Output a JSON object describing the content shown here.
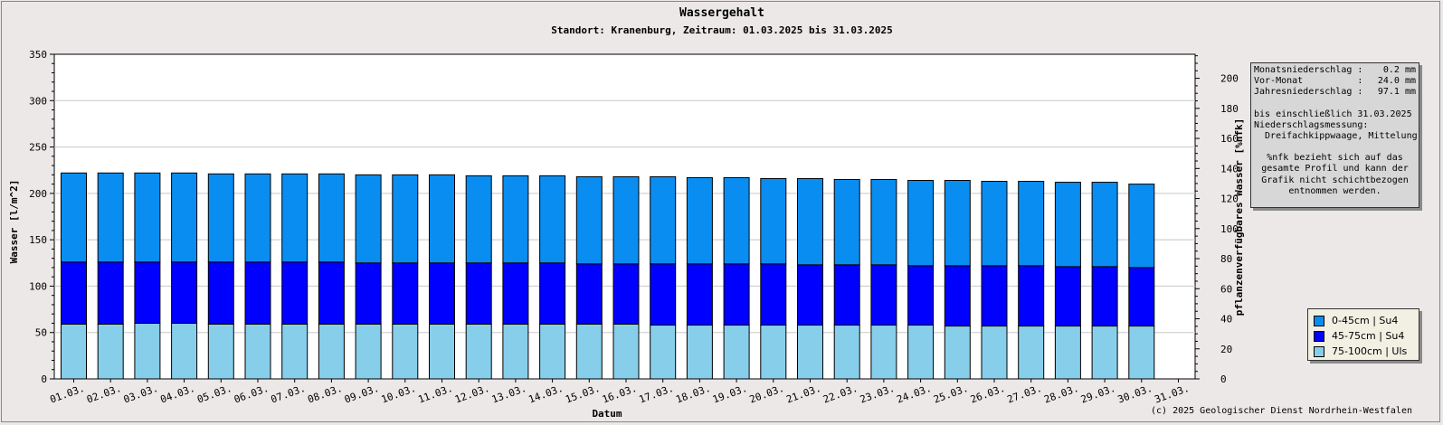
{
  "chart_data": {
    "type": "bar",
    "stacked": true,
    "title": "Wassergehalt",
    "subtitle": "Standort: Kranenburg, Zeitraum: 01.03.2025 bis 31.03.2025",
    "xlabel": "Datum",
    "ylabel": "Wasser [l/m^2]",
    "y2label": "pflanzenverfügbares Wasser [%nfk]",
    "ylim": [
      0,
      350
    ],
    "y2lim": [
      0,
      216
    ],
    "yticks": [
      0,
      50,
      100,
      150,
      200,
      250,
      300,
      350
    ],
    "y2ticks": [
      0,
      20,
      40,
      60,
      80,
      100,
      120,
      140,
      160,
      180,
      200
    ],
    "grid": true,
    "categories": [
      "01.03.",
      "02.03.",
      "03.03.",
      "04.03.",
      "05.03.",
      "06.03.",
      "07.03.",
      "08.03.",
      "09.03.",
      "10.03.",
      "11.03.",
      "12.03.",
      "13.03.",
      "14.03.",
      "15.03.",
      "16.03.",
      "17.03.",
      "18.03.",
      "19.03.",
      "20.03.",
      "21.03.",
      "22.03.",
      "23.03.",
      "24.03.",
      "25.03.",
      "26.03.",
      "27.03.",
      "28.03.",
      "29.03.",
      "30.03.",
      "31.03."
    ],
    "series": [
      {
        "name": "75-100cm | Uls",
        "color": "#87ceeb",
        "values": [
          59,
          59,
          60,
          60,
          59,
          59,
          59,
          59,
          59,
          59,
          59,
          59,
          59,
          59,
          59,
          59,
          58,
          58,
          58,
          58,
          58,
          58,
          58,
          58,
          57,
          57,
          57,
          57,
          57,
          57,
          null
        ]
      },
      {
        "name": "45-75cm | Su4",
        "color": "#0000ff",
        "values": [
          67,
          67,
          66,
          66,
          67,
          67,
          67,
          67,
          66,
          66,
          66,
          66,
          66,
          66,
          65,
          65,
          66,
          66,
          66,
          66,
          65,
          65,
          65,
          64,
          65,
          65,
          65,
          64,
          64,
          63,
          null
        ]
      },
      {
        "name": "0-45cm | Su4",
        "color": "#0a8df0",
        "values": [
          96,
          96,
          96,
          96,
          95,
          95,
          95,
          95,
          95,
          95,
          95,
          94,
          94,
          94,
          94,
          94,
          94,
          93,
          93,
          92,
          93,
          92,
          92,
          92,
          92,
          91,
          91,
          91,
          91,
          90,
          null
        ]
      }
    ],
    "legend_position": "right"
  },
  "info": {
    "monats_label": "Monatsniederschlag :",
    "monats_value": "0.2 mm",
    "vor_label": "Vor-Monat          :",
    "vor_value": "24.0 mm",
    "jahres_label": "Jahresniederschlag :",
    "jahres_value": "97.1 mm",
    "bis_text": "bis einschließlich 31.03.2025",
    "mess_text": "Niederschlagsmessung:",
    "method_text": "  Dreifachkippwaage, Mittelung",
    "note_text": "%nfk bezieht sich auf das\ngesamte Profil und kann der\nGrafik nicht schichtbezogen\nentnommen werden."
  },
  "copyright": "(c) 2025 Geologischer Dienst Nordrhein-Westfalen"
}
